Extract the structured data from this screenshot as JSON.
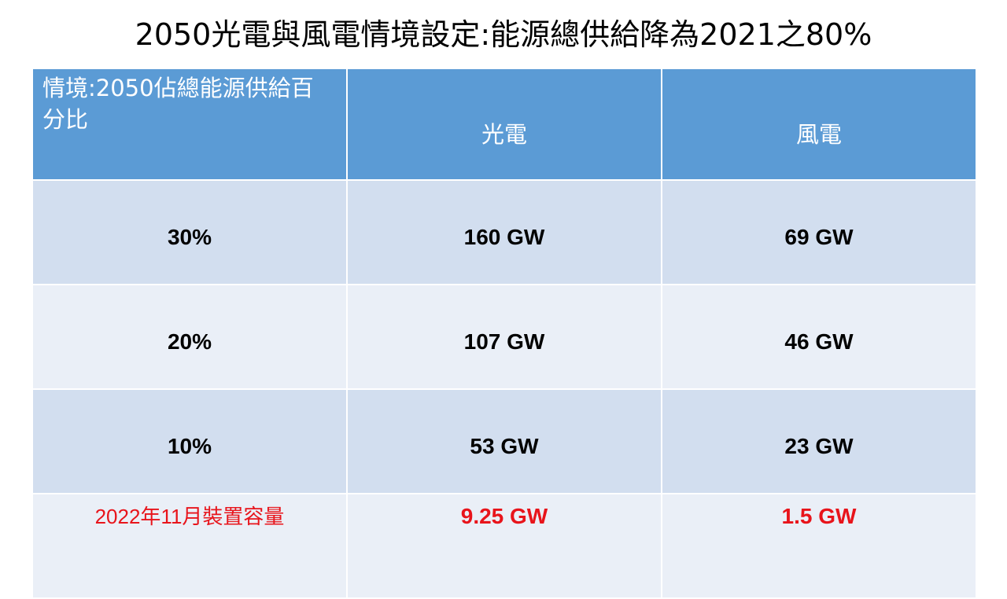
{
  "title": "2050光電與風電情境設定:能源總供給降為2021之80%",
  "table": {
    "headers": [
      "情境:2050佔總能源供給百分比",
      "光電",
      "風電"
    ],
    "rows": [
      [
        "30%",
        "160 GW",
        "69 GW"
      ],
      [
        "20%",
        "107 GW",
        "46 GW"
      ],
      [
        "10%",
        "53 GW",
        "23 GW"
      ]
    ],
    "installed": [
      "2022年11月裝置容量",
      "9.25 GW",
      "1.5 GW"
    ]
  },
  "colors": {
    "header_bg": "#5b9bd5",
    "row_odd_bg": "#d2deef",
    "row_even_bg": "#eaeff7",
    "highlight_text": "#e8141b"
  }
}
